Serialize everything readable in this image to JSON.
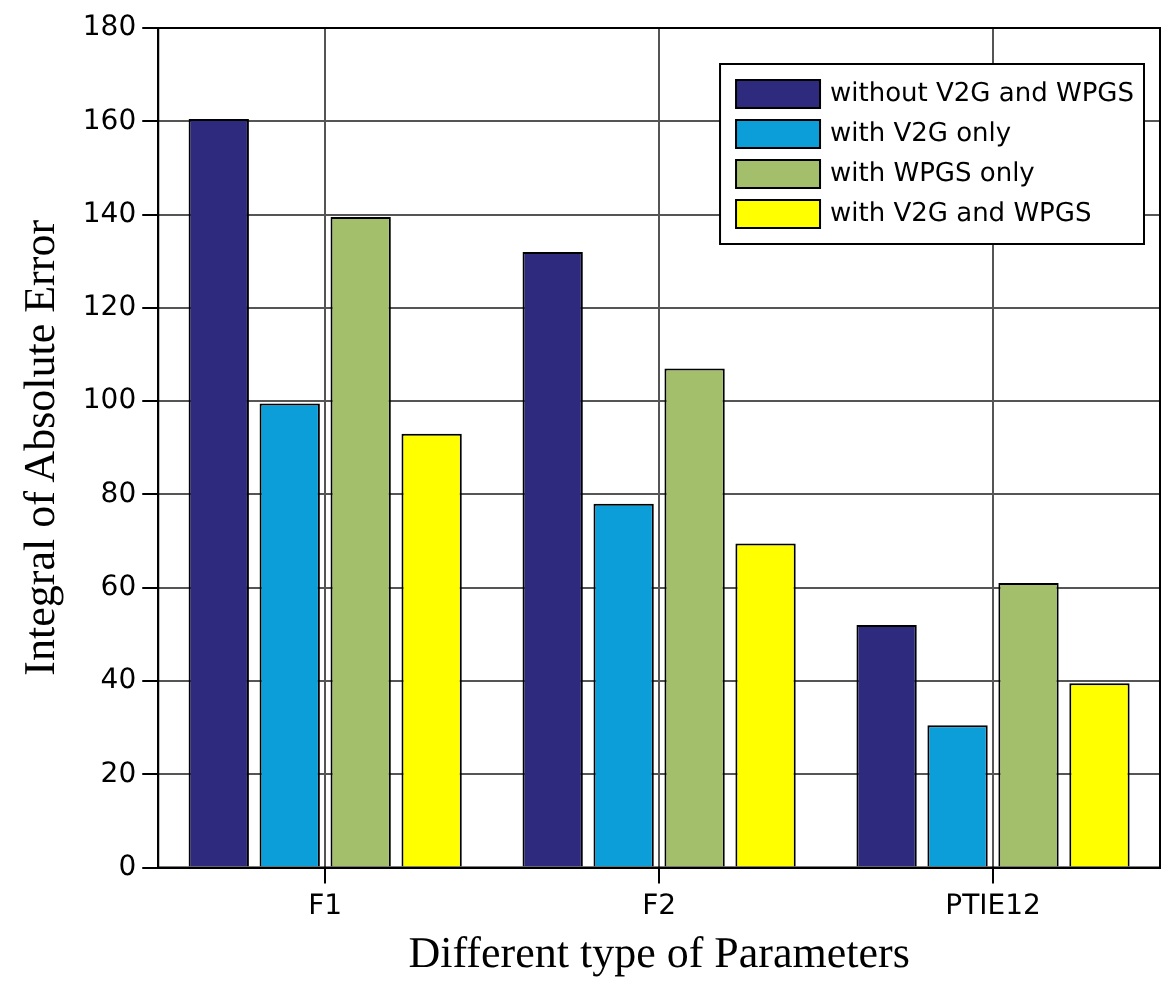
{
  "chart_data": {
    "type": "bar",
    "xlabel": "Different type of Parameters",
    "ylabel": "Integral of Absolute Error",
    "categories": [
      "F1",
      "F2",
      "PTIE12"
    ],
    "series": [
      {
        "name": "without V2G and WPGS",
        "color": "#2e2a7e",
        "values": [
          160.5,
          132,
          52
        ]
      },
      {
        "name": "with V2G only",
        "color": "#0b9ed8",
        "values": [
          99.5,
          78,
          30.5
        ]
      },
      {
        "name": "with WPGS only",
        "color": "#a3bf6b",
        "values": [
          139.5,
          107,
          61
        ]
      },
      {
        "name": "with V2G and WPGS",
        "color": "#ffff00",
        "values": [
          93,
          69.5,
          39.5
        ]
      }
    ],
    "ylim": [
      0,
      180
    ],
    "yticks": [
      0,
      20,
      40,
      60,
      80,
      100,
      120,
      140,
      160,
      180
    ],
    "grid": true,
    "legend": "top right"
  }
}
